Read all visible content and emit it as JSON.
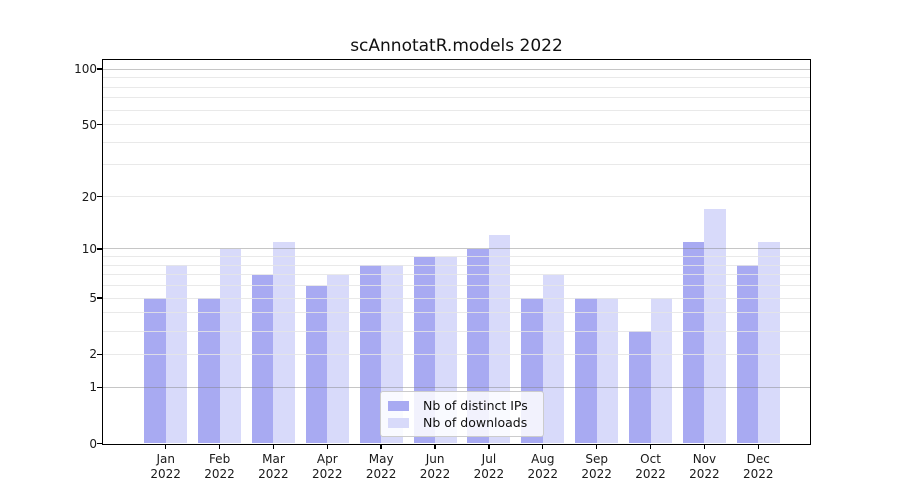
{
  "chart_data": {
    "type": "bar",
    "title": "scAnnotatR.models 2022",
    "categories": [
      "Jan",
      "Feb",
      "Mar",
      "Apr",
      "May",
      "Jun",
      "Jul",
      "Aug",
      "Sep",
      "Oct",
      "Nov",
      "Dec"
    ],
    "year": "2022",
    "series": [
      {
        "name": "Nb of distinct IPs",
        "color": "#a8aaf2",
        "values": [
          5,
          5,
          7,
          6,
          8,
          9,
          10,
          5,
          5,
          3,
          11,
          8
        ]
      },
      {
        "name": "Nb of downloads",
        "color": "#d8dafa",
        "values": [
          8,
          10,
          11,
          7,
          8,
          9,
          12,
          7,
          5,
          5,
          17,
          11
        ]
      }
    ],
    "xlabel": "",
    "ylabel": "",
    "y_scale": "log1p",
    "ylim": [
      0,
      112
    ],
    "y_ticks_labeled": [
      0,
      1,
      2,
      5,
      10,
      20,
      50,
      100
    ],
    "y_gridlines_major": [
      1,
      10,
      100
    ],
    "y_gridlines_minor": [
      2,
      3,
      4,
      5,
      6,
      7,
      8,
      9,
      20,
      30,
      40,
      50,
      60,
      70,
      80,
      90
    ],
    "grid": true,
    "legend_position": "lower center"
  },
  "colors": {
    "background": "#ffffff",
    "axis": "#000000",
    "bar_distinct_ips": "#a8aaf2",
    "bar_downloads": "#d8dafa"
  }
}
